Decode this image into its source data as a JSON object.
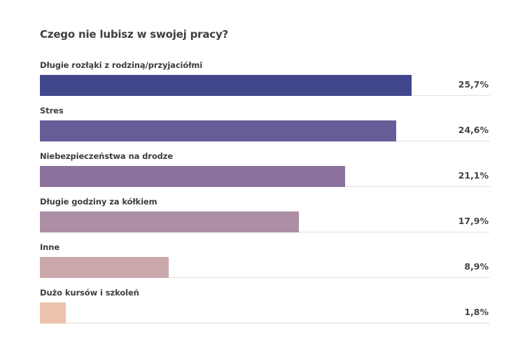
{
  "chart_data": {
    "type": "bar",
    "orientation": "horizontal",
    "title": "Czego nie lubisz w swojej pracy?",
    "xlabel": "",
    "ylabel": "",
    "xlim": [
      0,
      31.1
    ],
    "grid": false,
    "legend": "none",
    "categories": [
      "Długie rozłąki z rodziną/przyjaciółmi",
      "Stres",
      "Niebezpieczeństwa na drodze",
      "Długie godziny za kółkiem",
      "Inne",
      "Dużo kursów i szkoleń"
    ],
    "values": [
      25.7,
      24.6,
      21.1,
      17.9,
      8.9,
      1.8
    ],
    "value_labels": [
      "25,7%",
      "24,6%",
      "21,1%",
      "17,9%",
      "8,9%",
      "1,8%"
    ],
    "colors": [
      "#42478c",
      "#675c98",
      "#8a729c",
      "#ad8fa5",
      "#cba8ac",
      "#ecc2ad"
    ]
  }
}
